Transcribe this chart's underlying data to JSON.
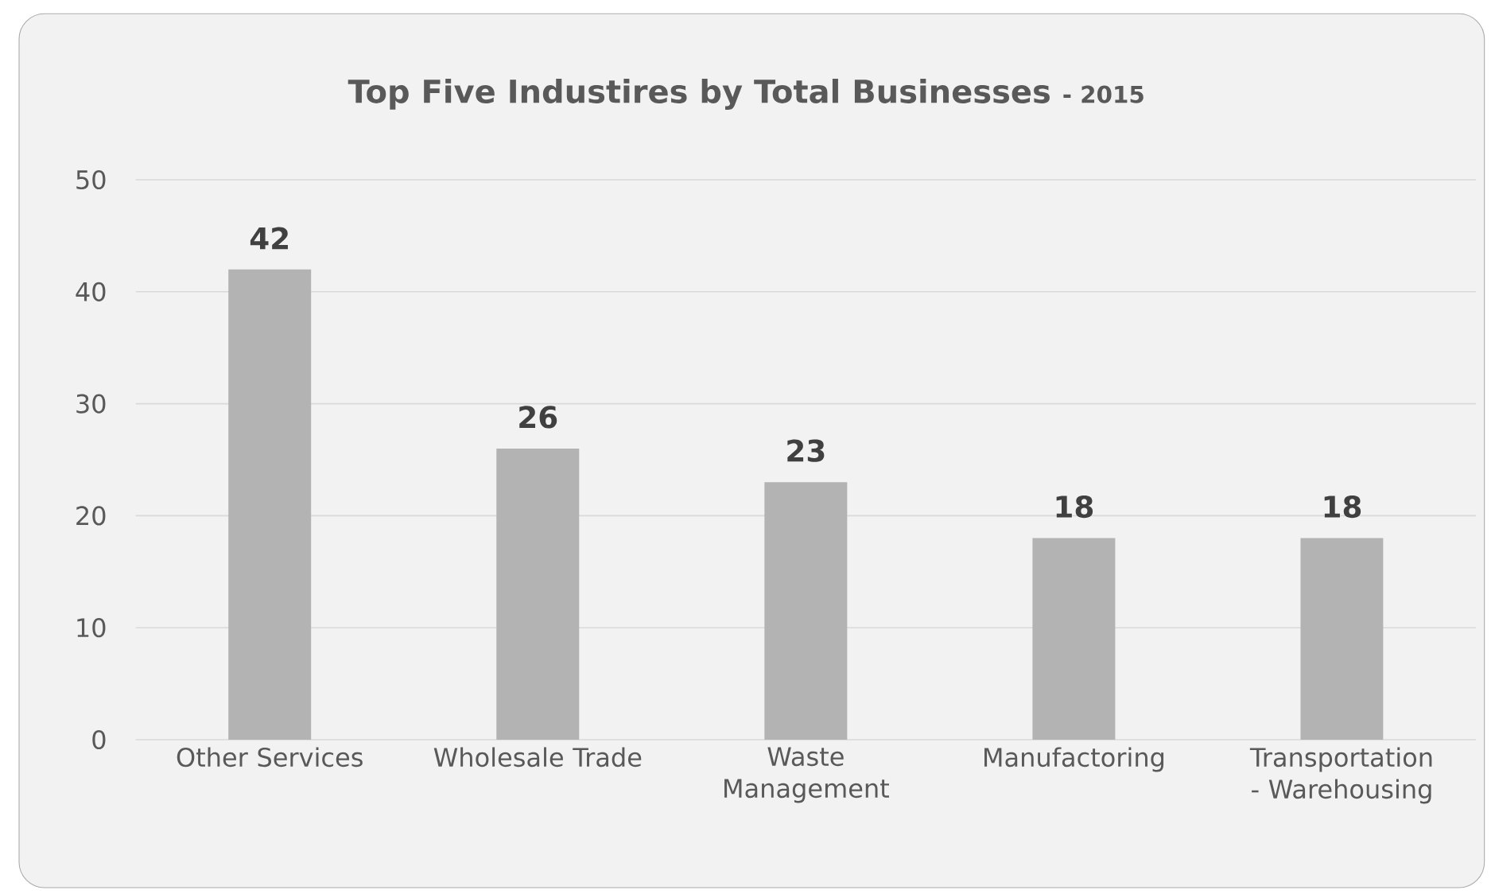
{
  "chart_data": {
    "type": "bar",
    "title": "Top Five Industires by Total Businesses",
    "subtitle": "- 2015",
    "categories": [
      "Other Services",
      "Wholesale Trade",
      "Waste Management",
      "Manufactoring",
      "Transportation - Warehousing"
    ],
    "values": [
      42,
      26,
      23,
      18,
      18
    ],
    "color": "#b3b3b3",
    "ylim": [
      0,
      50
    ],
    "yticks": [
      0,
      10,
      20,
      30,
      40,
      50
    ],
    "grid": "y",
    "data_labels": true
  }
}
